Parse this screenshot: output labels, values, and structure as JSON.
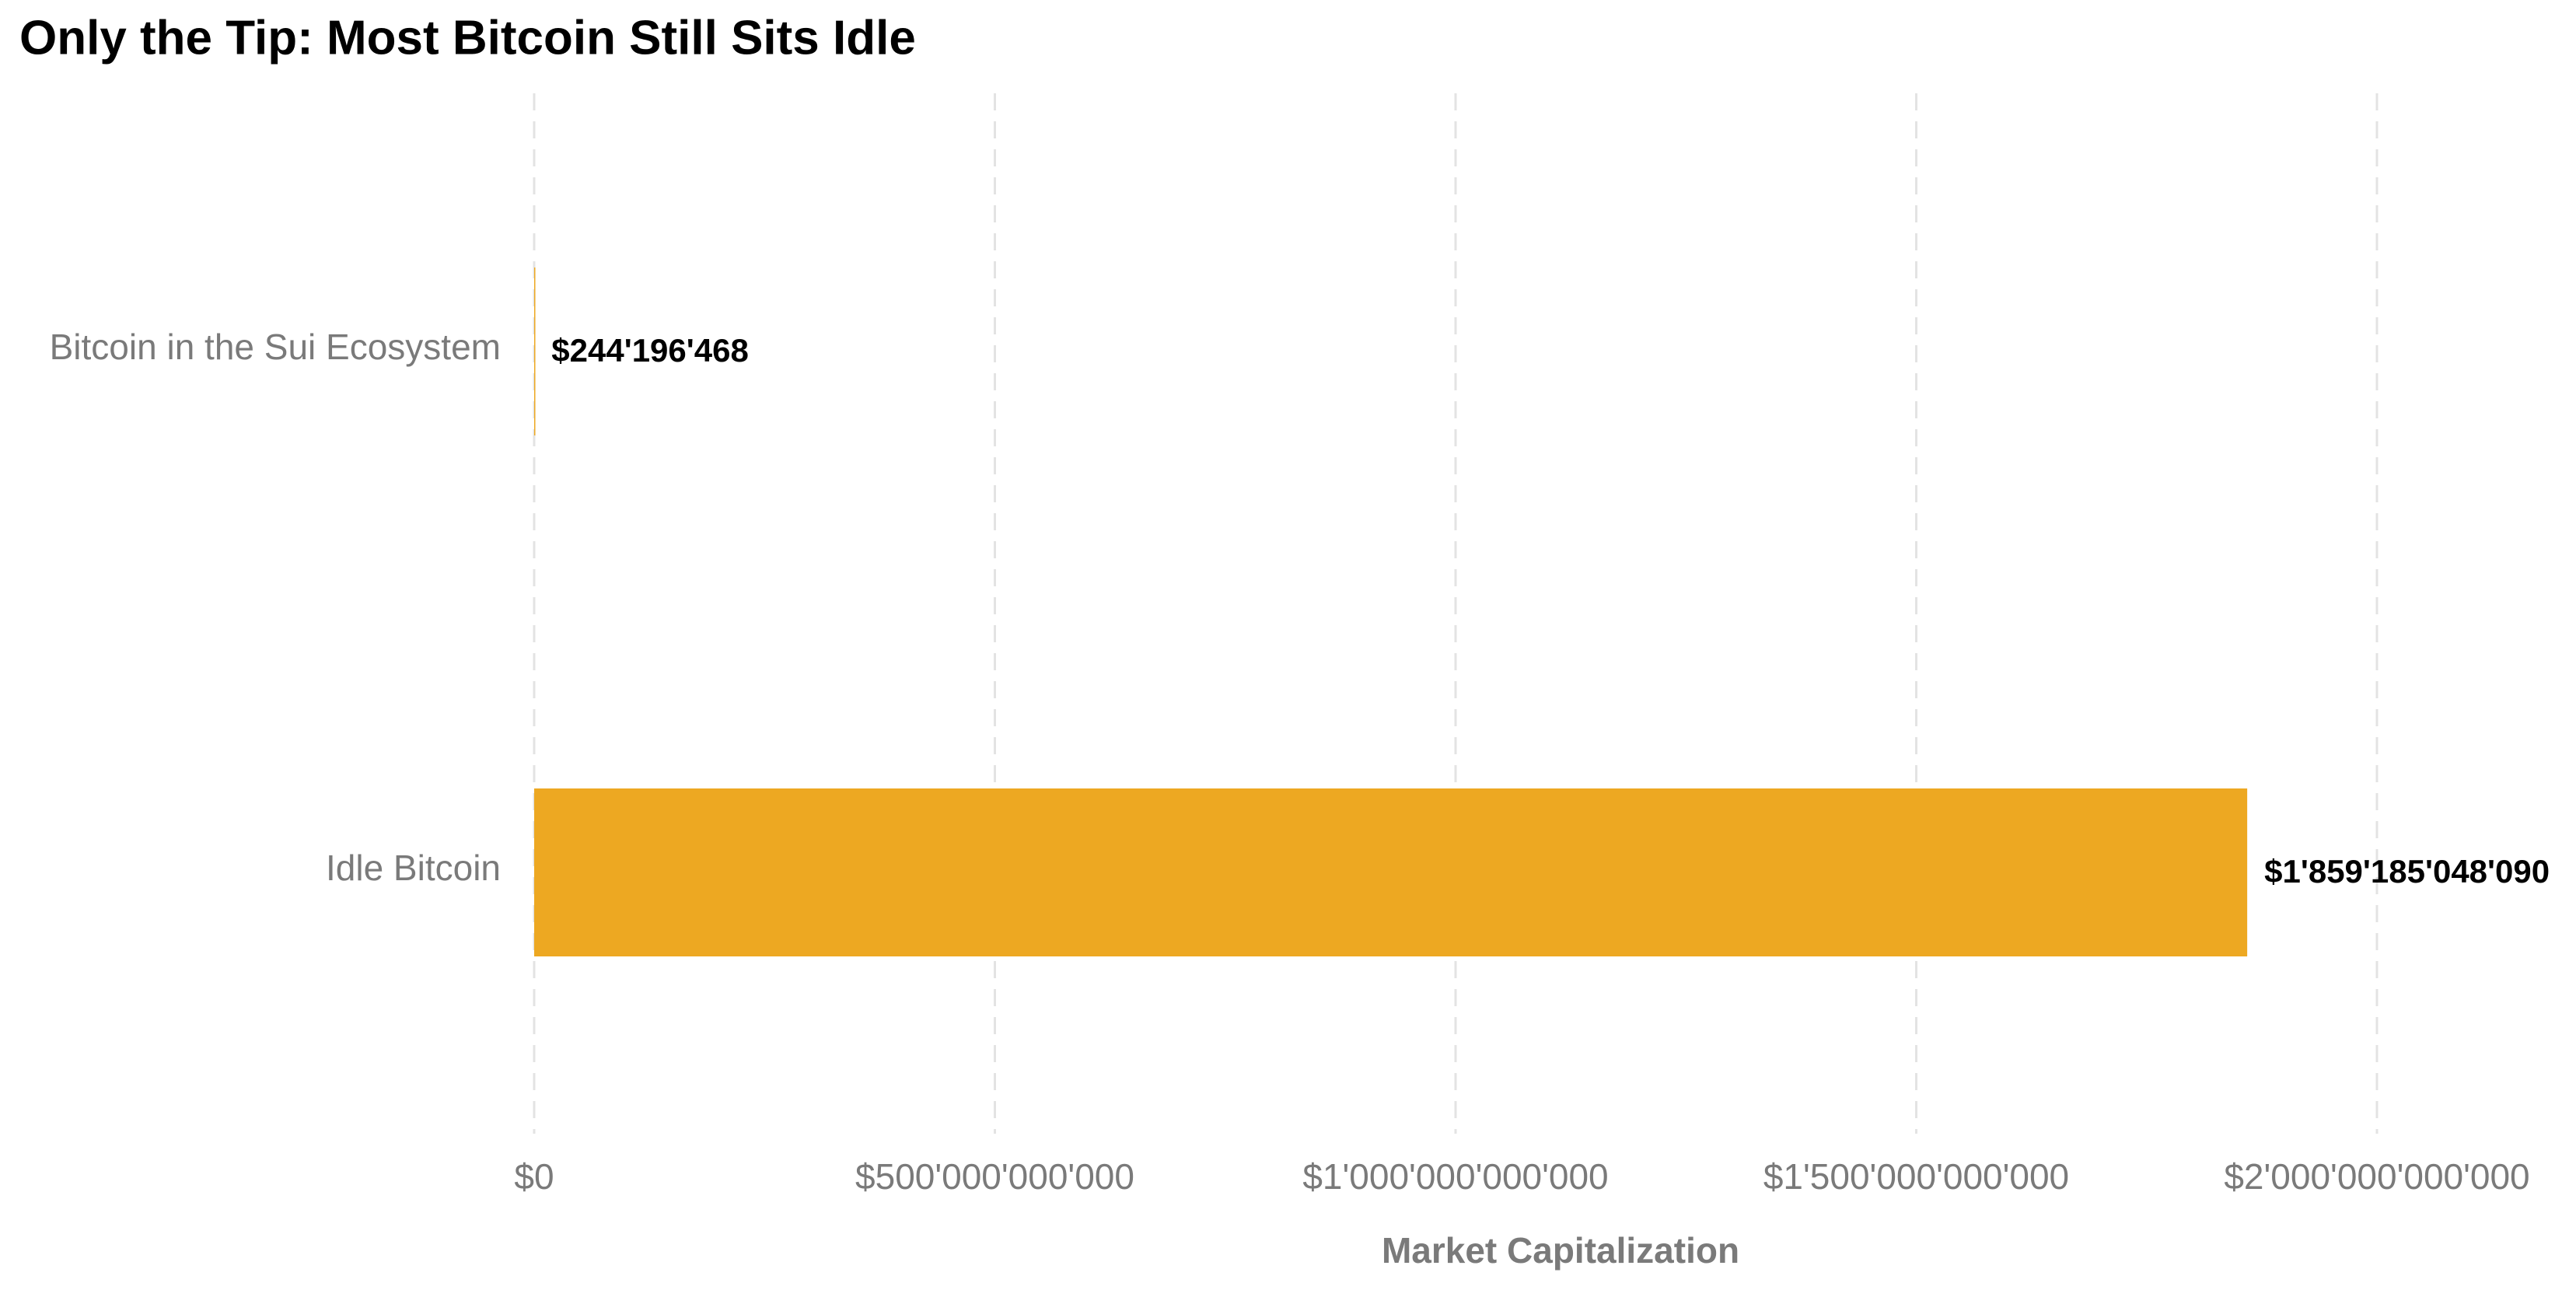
{
  "chart_data": {
    "type": "hbar",
    "title": "Only the Tip: Most Bitcoin Still Sits Idle",
    "categories": [
      "Bitcoin in the Sui Ecosystem",
      "Idle Bitcoin"
    ],
    "values": [
      244196468,
      1859185048090
    ],
    "value_labels": [
      "$244'196'468",
      "$1'859'185'048'090"
    ],
    "color": "#eda822",
    "x_label": "Market Capitalization",
    "xlim": [
      0,
      2000000000000
    ],
    "xticks": [
      {
        "value": 0,
        "label": "$0"
      },
      {
        "value": 500000000000,
        "label": "$500'000'000'000"
      },
      {
        "value": 1000000000000,
        "label": "$1'000'000'000'000"
      },
      {
        "value": 1500000000000,
        "label": "$1'500'000'000'000"
      },
      {
        "value": 2000000000000,
        "label": "$2'000'000'000'000"
      }
    ],
    "grid": true
  }
}
